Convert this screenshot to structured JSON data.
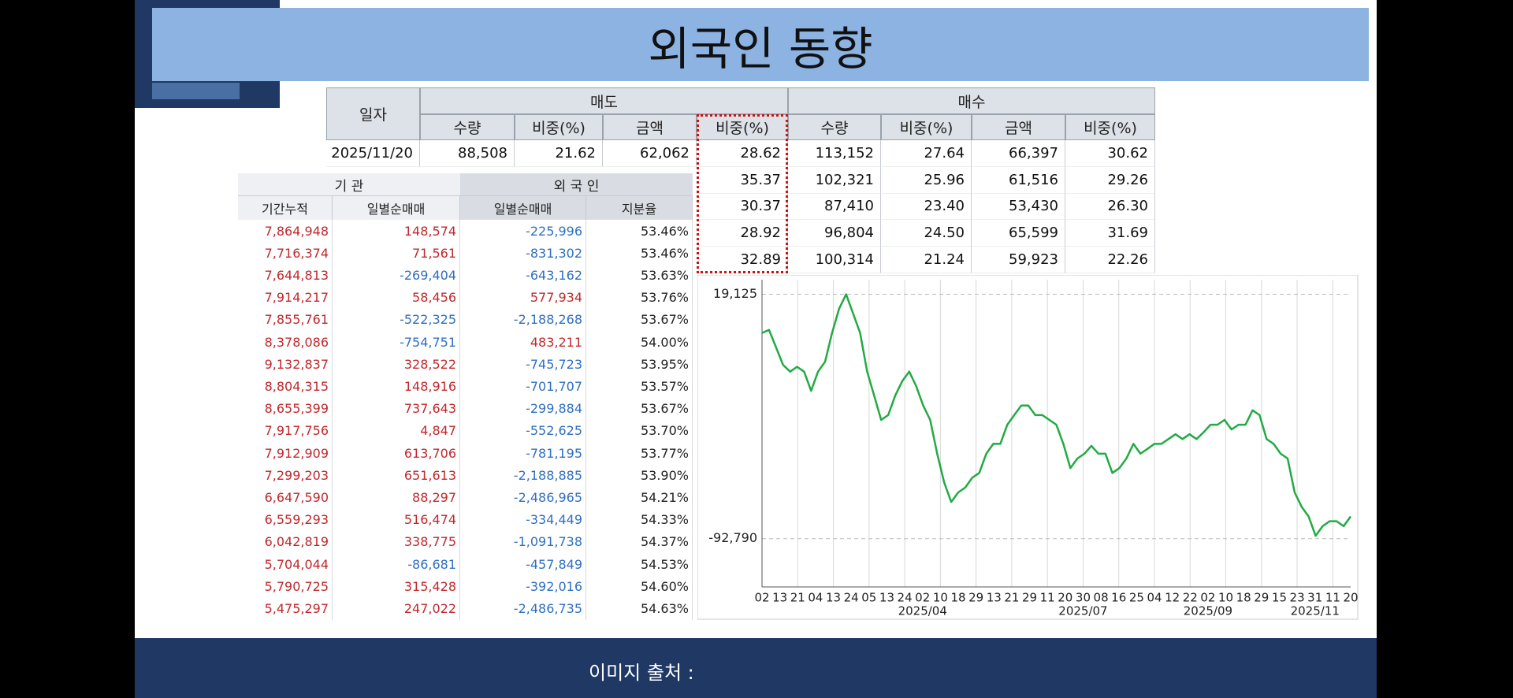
{
  "header": {
    "title": "외국인 동향"
  },
  "footer": {
    "text": "이미지 출처 :"
  },
  "top_table": {
    "date_header": "일자",
    "groups": [
      "매도",
      "매수"
    ],
    "columns": [
      "수량",
      "비중(%)",
      "금액",
      "비중(%)",
      "수량",
      "비중(%)",
      "금액",
      "비중(%)"
    ],
    "rows": [
      [
        "2025/11/20",
        "88,508",
        "21.62",
        "62,062",
        "28.62",
        "113,152",
        "27.64",
        "66,397",
        "30.62"
      ],
      [
        "35.37",
        "102,321",
        "25.96",
        "61,516",
        "29.26"
      ],
      [
        "30.37",
        "87,410",
        "23.40",
        "53,430",
        "26.30"
      ],
      [
        "28.92",
        "96,804",
        "24.50",
        "65,599",
        "31.69"
      ],
      [
        "32.89",
        "100,314",
        "21.24",
        "59,923",
        "22.26"
      ]
    ]
  },
  "left_table": {
    "groups": [
      "기 관",
      "외 국 인"
    ],
    "columns": [
      "기간누적",
      "일별순매매",
      "일별순매매",
      "지분율"
    ],
    "rows": [
      [
        "7,864,948",
        "148,574",
        "-225,996",
        "53.46%"
      ],
      [
        "7,716,374",
        "71,561",
        "-831,302",
        "53.46%"
      ],
      [
        "7,644,813",
        "-269,404",
        "-643,162",
        "53.63%"
      ],
      [
        "7,914,217",
        "58,456",
        "577,934",
        "53.76%"
      ],
      [
        "7,855,761",
        "-522,325",
        "-2,188,268",
        "53.67%"
      ],
      [
        "8,378,086",
        "-754,751",
        "483,211",
        "54.00%"
      ],
      [
        "9,132,837",
        "328,522",
        "-745,723",
        "53.95%"
      ],
      [
        "8,804,315",
        "148,916",
        "-701,707",
        "53.57%"
      ],
      [
        "8,655,399",
        "737,643",
        "-299,884",
        "53.67%"
      ],
      [
        "7,917,756",
        "4,847",
        "-552,625",
        "53.70%"
      ],
      [
        "7,912,909",
        "613,706",
        "-781,195",
        "53.77%"
      ],
      [
        "7,299,203",
        "651,613",
        "-2,188,885",
        "53.90%"
      ],
      [
        "6,647,590",
        "88,297",
        "-2,486,965",
        "54.21%"
      ],
      [
        "6,559,293",
        "516,474",
        "-334,449",
        "54.33%"
      ],
      [
        "6,042,819",
        "338,775",
        "-1,091,738",
        "54.37%"
      ],
      [
        "5,704,044",
        "-86,681",
        "-457,849",
        "54.53%"
      ],
      [
        "5,790,725",
        "315,428",
        "-392,016",
        "54.60%"
      ],
      [
        "5,475,297",
        "247,022",
        "-2,486,735",
        "54.63%"
      ]
    ]
  },
  "chart_data": {
    "type": "line",
    "color": "#22aa44",
    "grid": true,
    "ylim": [
      -114900,
      25800
    ],
    "yticks": [
      {
        "value": 19125,
        "label": "19,125"
      },
      {
        "value": -92790,
        "label": "-92,790"
      }
    ],
    "xlim": [
      0,
      33
    ],
    "xticks": [
      {
        "value": 0,
        "label": "02"
      },
      {
        "value": 1,
        "label": "13"
      },
      {
        "value": 2,
        "label": "21"
      },
      {
        "value": 3,
        "label": "04"
      },
      {
        "value": 4,
        "label": "13"
      },
      {
        "value": 5,
        "label": "24"
      },
      {
        "value": 6,
        "label": "05"
      },
      {
        "value": 7,
        "label": "13"
      },
      {
        "value": 8,
        "label": "24"
      },
      {
        "value": 9,
        "label": "02"
      },
      {
        "value": 10,
        "label": "10"
      },
      {
        "value": 11,
        "label": "18"
      },
      {
        "value": 12,
        "label": "29"
      },
      {
        "value": 13,
        "label": "13"
      },
      {
        "value": 14,
        "label": "21"
      },
      {
        "value": 15,
        "label": "29"
      },
      {
        "value": 16,
        "label": "11"
      },
      {
        "value": 17,
        "label": "20"
      },
      {
        "value": 18,
        "label": "30"
      },
      {
        "value": 19,
        "label": "08"
      },
      {
        "value": 20,
        "label": "16"
      },
      {
        "value": 21,
        "label": "25"
      },
      {
        "value": 22,
        "label": "04"
      },
      {
        "value": 23,
        "label": "12"
      },
      {
        "value": 24,
        "label": "22"
      },
      {
        "value": 25,
        "label": "02"
      },
      {
        "value": 26,
        "label": "10"
      },
      {
        "value": 27,
        "label": "18"
      },
      {
        "value": 28,
        "label": "29"
      },
      {
        "value": 29,
        "label": "15"
      },
      {
        "value": 30,
        "label": "23"
      },
      {
        "value": 31,
        "label": "31"
      },
      {
        "value": 32,
        "label": "11"
      },
      {
        "value": 33,
        "label": "20"
      }
    ],
    "month_ticks": [
      {
        "value": 9,
        "label": "2025/04"
      },
      {
        "value": 18,
        "label": "2025/07"
      },
      {
        "value": 25,
        "label": "2025/09"
      },
      {
        "value": 31,
        "label": "2025/11"
      }
    ],
    "values": [
      1400,
      2800,
      -5200,
      -13200,
      -16300,
      -14100,
      -16300,
      -25100,
      -16300,
      -11800,
      1400,
      12500,
      19100,
      10300,
      1400,
      -16300,
      -27300,
      -38400,
      -36200,
      -27300,
      -20700,
      -16300,
      -22900,
      -31800,
      -38400,
      -53900,
      -67100,
      -76000,
      -71600,
      -69400,
      -64900,
      -62700,
      -53900,
      -49400,
      -49400,
      -40600,
      -36200,
      -31800,
      -31800,
      -36200,
      -36200,
      -38400,
      -40600,
      -49400,
      -60500,
      -56100,
      -53900,
      -50300,
      -53900,
      -53900,
      -62700,
      -60500,
      -56100,
      -49400,
      -53900,
      -51700,
      -49400,
      -49400,
      -47200,
      -45000,
      -47200,
      -45000,
      -47200,
      -44100,
      -40600,
      -40600,
      -38400,
      -42800,
      -40600,
      -40600,
      -34000,
      -36200,
      -47200,
      -49400,
      -53900,
      -56100,
      -71600,
      -78200,
      -82600,
      -91500,
      -87100,
      -84800,
      -84800,
      -87100,
      -82600
    ]
  }
}
